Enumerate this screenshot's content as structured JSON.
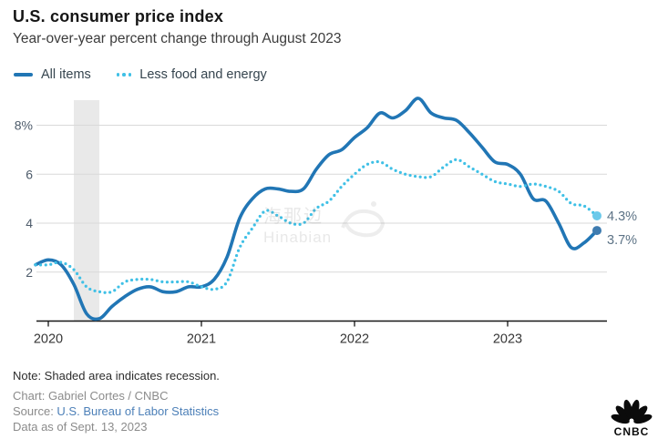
{
  "header": {
    "title": "U.S. consumer price index",
    "subtitle": "Year-over-year percent change through August 2023"
  },
  "legend": [
    {
      "label": "All items",
      "style": "solid",
      "color": "#2176b5"
    },
    {
      "label": "Less food and energy",
      "style": "dotted",
      "color": "#3fc0e6"
    }
  ],
  "chart_data": {
    "type": "line",
    "title": "U.S. consumer price index",
    "subtitle": "Year-over-year percent change through August 2023",
    "x_start": "2019-12",
    "x_end": "2023-08",
    "x_interval": "monthly",
    "xlabel": "",
    "ylabel": "percent change year-over-year",
    "ylim": [
      0,
      9.3
    ],
    "grid": "horizontal",
    "legend_position": "top-left",
    "y_ticks": [
      {
        "value": 2,
        "label": "2"
      },
      {
        "value": 4,
        "label": "4"
      },
      {
        "value": 6,
        "label": "6"
      },
      {
        "value": 8,
        "label": "8%"
      }
    ],
    "x_ticks": [
      {
        "label": "2020",
        "month_index": 1
      },
      {
        "label": "2021",
        "month_index": 13
      },
      {
        "label": "2022",
        "month_index": 25
      },
      {
        "label": "2023",
        "month_index": 37
      }
    ],
    "recession_band": {
      "from": "2020-03",
      "to": "2020-05",
      "from_index": 3,
      "to_index": 5
    },
    "series": [
      {
        "name": "All items",
        "style": "solid",
        "color": "#2176b5",
        "dot_color": "#3f7cb0",
        "end_label": "3.7%",
        "values": [
          2.3,
          2.5,
          2.3,
          1.5,
          0.3,
          0.1,
          0.6,
          1.0,
          1.3,
          1.4,
          1.2,
          1.2,
          1.4,
          1.4,
          1.7,
          2.6,
          4.2,
          5.0,
          5.4,
          5.4,
          5.3,
          5.4,
          6.2,
          6.8,
          7.0,
          7.5,
          7.9,
          8.5,
          8.3,
          8.6,
          9.1,
          8.5,
          8.3,
          8.2,
          7.7,
          7.1,
          6.5,
          6.4,
          6.0,
          5.0,
          4.9,
          4.0,
          3.0,
          3.2,
          3.7
        ]
      },
      {
        "name": "Less food and energy",
        "style": "dotted",
        "color": "#3fc0e6",
        "dot_color": "#6cc9ea",
        "end_label": "4.3%",
        "values": [
          2.3,
          2.3,
          2.4,
          2.1,
          1.4,
          1.2,
          1.2,
          1.6,
          1.7,
          1.7,
          1.6,
          1.6,
          1.6,
          1.4,
          1.3,
          1.6,
          3.0,
          3.8,
          4.5,
          4.3,
          4.0,
          4.0,
          4.6,
          4.9,
          5.5,
          6.0,
          6.4,
          6.5,
          6.2,
          6.0,
          5.9,
          5.9,
          6.3,
          6.6,
          6.3,
          6.0,
          5.7,
          5.6,
          5.5,
          5.6,
          5.5,
          5.3,
          4.8,
          4.7,
          4.3
        ]
      }
    ]
  },
  "watermark": {
    "line1": "海那边",
    "line2": "Hinabian"
  },
  "footer": {
    "note": "Note: Shaded area indicates recession.",
    "chart_credit": "Chart: Gabriel Cortes / CNBC",
    "source_label": "Source: ",
    "source_link": "U.S. Bureau of Labor Statistics",
    "data_as_of": "Data as of Sept. 13, 2023"
  },
  "logo": {
    "text": "CNBC"
  },
  "colors": {
    "accent_solid": "#2176b5",
    "accent_dotted": "#3fc0e6",
    "grid": "#d9d9d9",
    "axis": "#161616",
    "recession_band": "#e9e9e9",
    "y_label": "#4e5c6b",
    "x_label": "#363636",
    "end_label": "#5d7386",
    "link": "#4d80b8"
  }
}
